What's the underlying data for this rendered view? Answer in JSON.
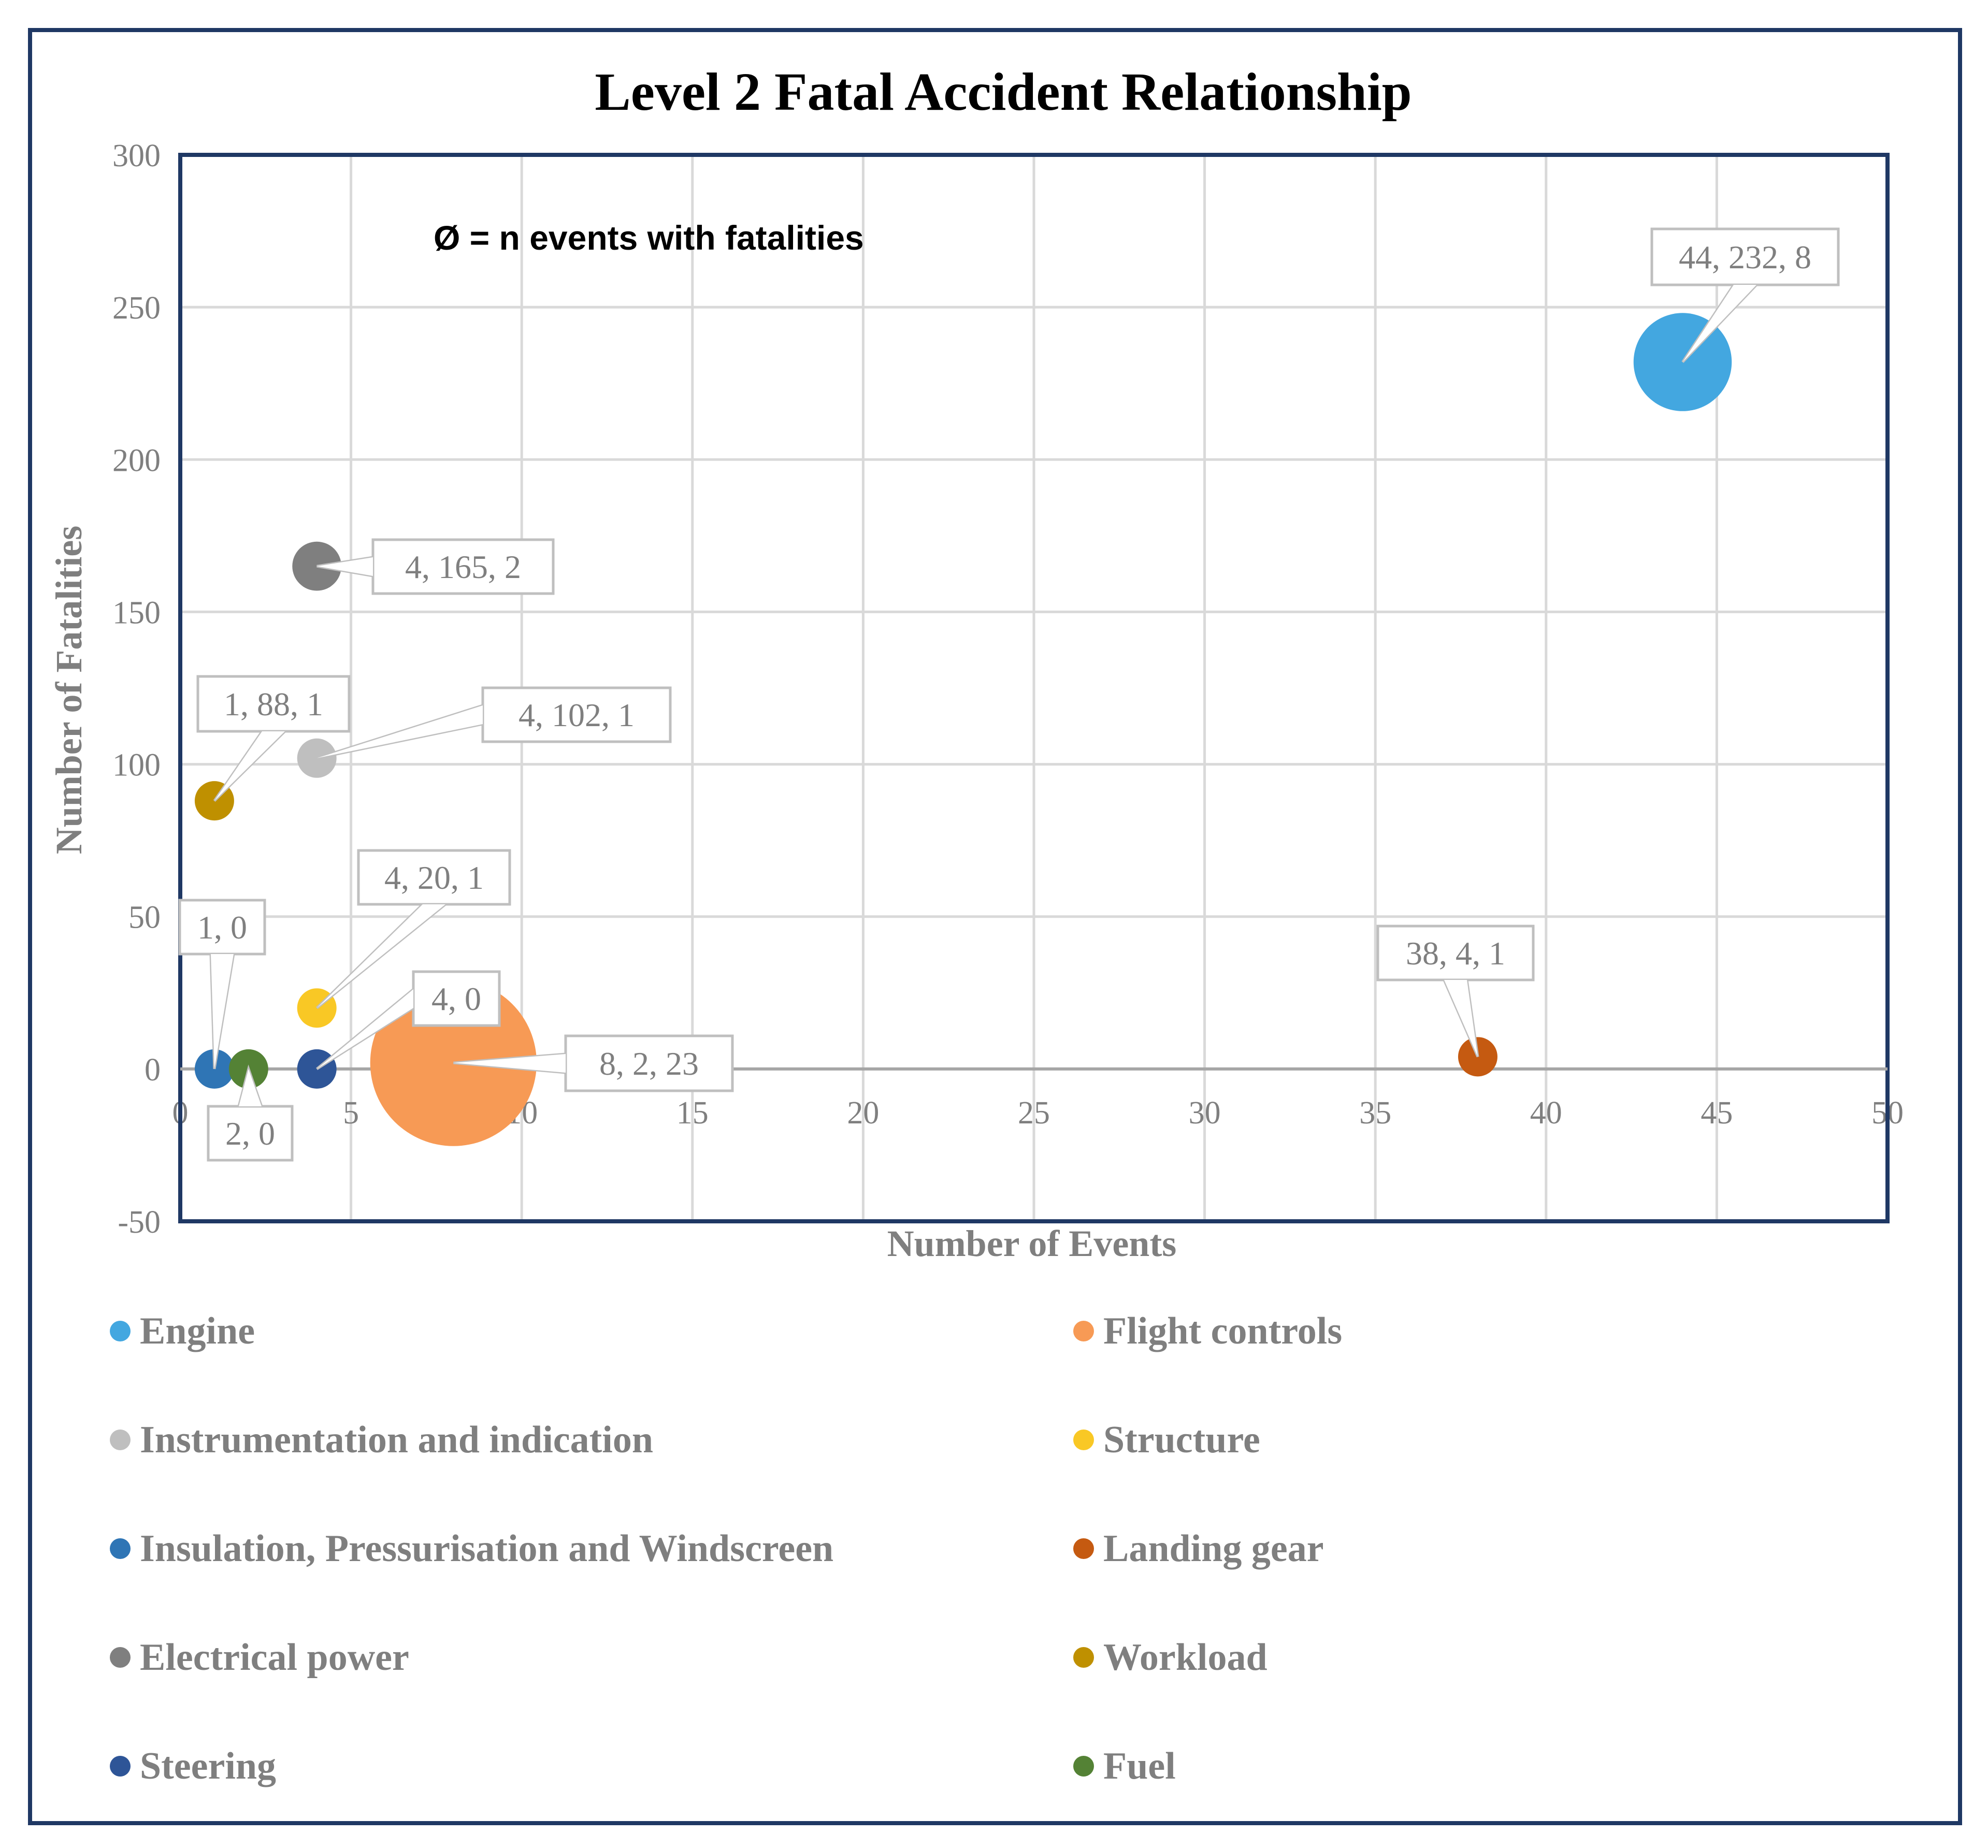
{
  "chart_data": {
    "type": "bubble",
    "title": "Level 2 Fatal Accident Relationship",
    "xlabel": "Number of Events",
    "ylabel": "Number of Fatalities",
    "annotation": "Ø = n events with fatalities",
    "xlim": [
      0,
      50
    ],
    "ylim": [
      -50,
      300
    ],
    "xticks": [
      "0",
      "5",
      "10",
      "15",
      "20",
      "25",
      "30",
      "35",
      "40",
      "45",
      "50"
    ],
    "yticks": [
      "-50",
      "0",
      "50",
      "100",
      "150",
      "200",
      "250",
      "300"
    ],
    "grid": true,
    "legend_position": "bottom",
    "series": [
      {
        "name": "Engine",
        "x": 44,
        "y": 232,
        "size": 8,
        "color": "#43a7e0",
        "label": "44, 232, 8"
      },
      {
        "name": "Flight controls",
        "x": 8,
        "y": 2,
        "size": 23,
        "color": "#f79a55",
        "label": "8, 2, 23"
      },
      {
        "name": "Instrumentation and indication",
        "x": 4,
        "y": 102,
        "size": 1,
        "color": "#bfbfbf",
        "label": "4, 102, 1"
      },
      {
        "name": "Structure",
        "x": 4,
        "y": 20,
        "size": 1,
        "color": "#f9c825",
        "label": "4, 20, 1"
      },
      {
        "name": "Insulation, Pressurisation and Windscreen",
        "x": 1,
        "y": 0,
        "size": 0,
        "color": "#2f75b5",
        "label": "1, 0"
      },
      {
        "name": "Landing gear",
        "x": 38,
        "y": 4,
        "size": 1,
        "color": "#c55a11",
        "label": "38, 4, 1"
      },
      {
        "name": "Electrical power",
        "x": 4,
        "y": 165,
        "size": 2,
        "color": "#7f7f7f",
        "label": "4, 165, 2"
      },
      {
        "name": "Workload",
        "x": 1,
        "y": 88,
        "size": 1,
        "color": "#bf9000",
        "label": "1, 88, 1"
      },
      {
        "name": "Steering",
        "x": 4,
        "y": 0,
        "size": 0,
        "color": "#2e5597",
        "label": "4, 0"
      },
      {
        "name": "Fuel",
        "x": 2,
        "y": 0,
        "size": 0,
        "color": "#548235",
        "label": "2, 0"
      }
    ]
  }
}
